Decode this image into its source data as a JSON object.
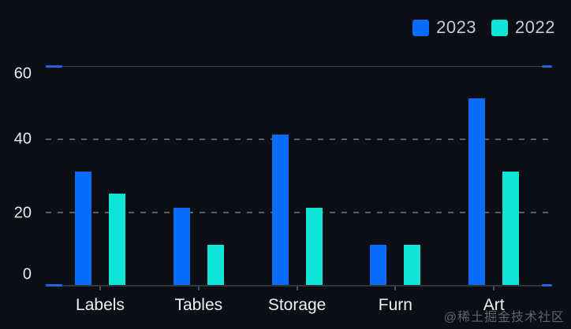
{
  "chart_data": {
    "type": "bar",
    "categories": [
      "Labels",
      "Tables",
      "Storage",
      "Furn",
      "Art"
    ],
    "series": [
      {
        "name": "2023",
        "color": "#0a6cfa",
        "values": [
          31,
          21,
          41,
          11,
          51
        ]
      },
      {
        "name": "2022",
        "color": "#10e4d6",
        "values": [
          25,
          11,
          21,
          11,
          31
        ]
      }
    ],
    "title": "",
    "xlabel": "",
    "ylabel": "",
    "ylim": [
      0,
      60
    ],
    "yticks": [
      0,
      20,
      40,
      60
    ],
    "grid": "horizontal dashed gridlines at 20 and 40; solid rules at 0 and 60 with blue end caps",
    "legend_position": "top-right"
  },
  "legend": {
    "items": [
      {
        "label": "2023",
        "color": "#0a6cfa"
      },
      {
        "label": "2022",
        "color": "#10e4d6"
      }
    ]
  },
  "colors": {
    "background": "#0b0e14",
    "axis_text": "#e8eaed",
    "category_text": "#eef0f2",
    "legend_text": "#c7ccd2",
    "grid_dash": "#5a5f66",
    "rule_line": "#42464d",
    "rule_cap_blue": "#2166e0",
    "watermark_text": "#5f646b"
  },
  "watermark": "@稀土掘金技术社区"
}
